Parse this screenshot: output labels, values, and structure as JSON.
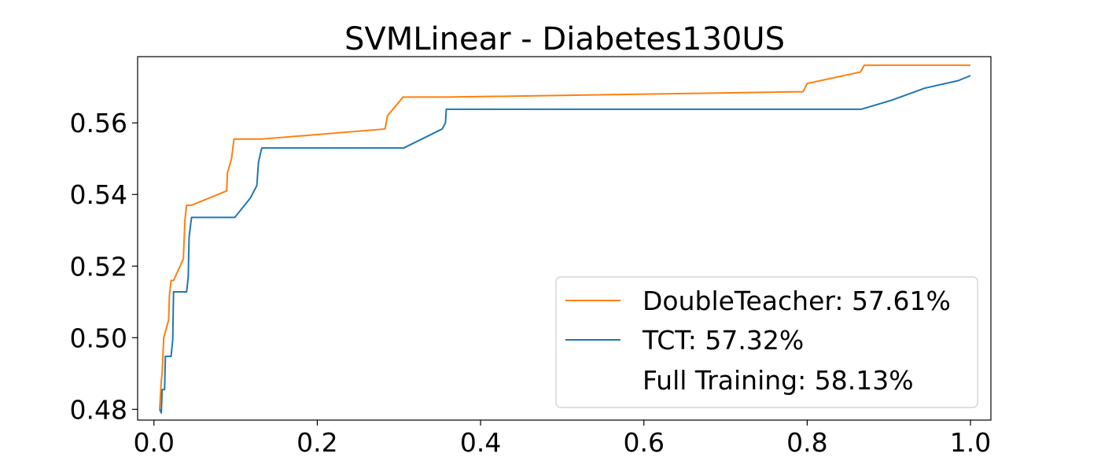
{
  "chart_data": {
    "type": "line",
    "title": "SVMLinear - Diabetes130US",
    "xlabel": "",
    "ylabel": "",
    "xlim": [
      -0.02,
      1.025
    ],
    "ylim": [
      0.477,
      0.5785
    ],
    "x_ticks": [
      0.0,
      0.2,
      0.4,
      0.6,
      0.8,
      1.0
    ],
    "x_tick_labels": [
      "0.0",
      "0.2",
      "0.4",
      "0.6",
      "0.8",
      "1.0"
    ],
    "y_ticks": [
      0.48,
      0.5,
      0.52,
      0.54,
      0.56
    ],
    "y_tick_labels": [
      "0.48",
      "0.50",
      "0.52",
      "0.54",
      "0.56"
    ],
    "grid": false,
    "legend_position": "lower-right",
    "series": [
      {
        "name": "DoubleTeacher: 57.61%",
        "color": "#ff7f0e",
        "points": [
          [
            0.007,
            0.48
          ],
          [
            0.009,
            0.488
          ],
          [
            0.01,
            0.49
          ],
          [
            0.011,
            0.495
          ],
          [
            0.012,
            0.5
          ],
          [
            0.018,
            0.505
          ],
          [
            0.019,
            0.512
          ],
          [
            0.021,
            0.516
          ],
          [
            0.024,
            0.516
          ],
          [
            0.036,
            0.522
          ],
          [
            0.038,
            0.533
          ],
          [
            0.04,
            0.537
          ],
          [
            0.046,
            0.537
          ],
          [
            0.089,
            0.541
          ],
          [
            0.09,
            0.546
          ],
          [
            0.095,
            0.55
          ],
          [
            0.098,
            0.5555
          ],
          [
            0.133,
            0.5555
          ],
          [
            0.283,
            0.5583
          ],
          [
            0.286,
            0.562
          ],
          [
            0.3,
            0.5658
          ],
          [
            0.305,
            0.5672
          ],
          [
            0.36,
            0.5672
          ],
          [
            0.795,
            0.5687
          ],
          [
            0.8,
            0.571
          ],
          [
            0.865,
            0.5742
          ],
          [
            0.87,
            0.5761
          ],
          [
            1.0,
            0.5761
          ]
        ]
      },
      {
        "name": "TCT: 57.32%",
        "color": "#1f77b4",
        "points": [
          [
            0.007,
            0.48
          ],
          [
            0.009,
            0.479
          ],
          [
            0.01,
            0.4855
          ],
          [
            0.013,
            0.4855
          ],
          [
            0.014,
            0.4948
          ],
          [
            0.021,
            0.4948
          ],
          [
            0.023,
            0.4995
          ],
          [
            0.024,
            0.5128
          ],
          [
            0.04,
            0.5128
          ],
          [
            0.042,
            0.517
          ],
          [
            0.043,
            0.528
          ],
          [
            0.046,
            0.5336
          ],
          [
            0.099,
            0.5336
          ],
          [
            0.118,
            0.539
          ],
          [
            0.126,
            0.5425
          ],
          [
            0.128,
            0.549
          ],
          [
            0.132,
            0.553
          ],
          [
            0.306,
            0.553
          ],
          [
            0.353,
            0.5583
          ],
          [
            0.357,
            0.56
          ],
          [
            0.358,
            0.5638
          ],
          [
            0.866,
            0.5638
          ],
          [
            0.903,
            0.5663
          ],
          [
            0.944,
            0.5697
          ],
          [
            0.985,
            0.5718
          ],
          [
            1.0,
            0.5732
          ]
        ]
      }
    ],
    "extra_legend_entry": "Full Training: 58.13%"
  }
}
